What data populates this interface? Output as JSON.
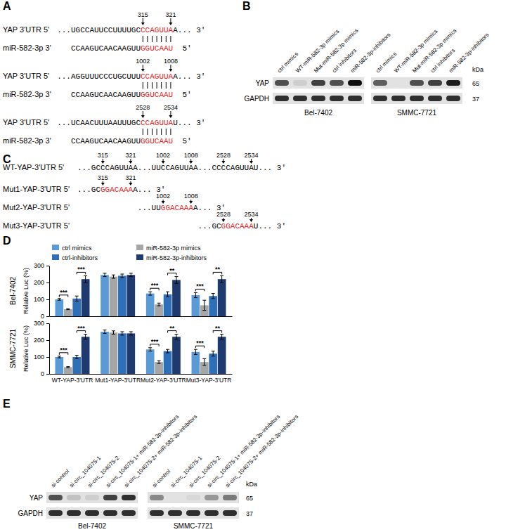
{
  "panels": {
    "A": {
      "label": "A",
      "color": "#e3231f",
      "alignments": [
        {
          "positions": [
            315,
            321
          ],
          "target_label": "YAP 3'UTR 5'",
          "target": [
            "...UGCCAUUCCUUUUGC",
            "CCAGUUA",
            "A... 3'"
          ],
          "mirna_label": "miR-582-3p 3'",
          "mirna": [
            "CCAAGUCAACAAGUU",
            "GGUCAAU",
            "5'"
          ]
        },
        {
          "positions": [
            1002,
            1008
          ],
          "target_label": "YAP 3'UTR 5'",
          "target": [
            "...AGGUUUCCCUGCUUU",
            "CCAGUUA",
            "A... 3'"
          ],
          "mirna_label": "miR-582-3p 3'",
          "mirna": [
            "CCAAGUCAACAAGUU",
            "GGUCAAU",
            "5'"
          ]
        },
        {
          "positions": [
            2528,
            2534
          ],
          "target_label": "YAP 3'UTR 5'",
          "target": [
            "...UCAACUUUAAUUUGC",
            "CCAGUUA",
            "U... 3'"
          ],
          "mirna_label": "miR-582-3p 3'",
          "mirna": [
            "CCAAGUCAACAAGUU",
            "GGUCAAU",
            "5'"
          ]
        }
      ]
    },
    "B": {
      "label": "B",
      "unit": "kDa",
      "lanes": [
        "ctrl mimics",
        "WT-miR-582-3p mimics",
        "Mut-miR-582-3p mimics",
        "ctrl inhibitors",
        "miR-582-3p-inhibitors"
      ],
      "rows": [
        {
          "name": "YAP",
          "kda": 65
        },
        {
          "name": "GAPDH",
          "kda": 37
        }
      ],
      "groups": [
        {
          "name": "Bel-7402",
          "intensity": [
            [
              0.75,
              0.3,
              0.8,
              0.75,
              0.95
            ],
            [
              0.85,
              0.85,
              0.85,
              0.85,
              0.85
            ]
          ]
        },
        {
          "name": "SMMC-7721",
          "intensity": [
            [
              0.7,
              0.2,
              0.75,
              0.8,
              0.9
            ],
            [
              0.85,
              0.85,
              0.85,
              0.85,
              0.85
            ]
          ]
        }
      ]
    },
    "C": {
      "label": "C",
      "color": "#e3231f",
      "wt": {
        "label": "WT-YAP-3'UTR 5'",
        "segments": [
          "...GC",
          "CCAGUUA",
          "A...UU",
          "CCAGUUA",
          "A...CC",
          "CCAGUUA",
          "U... 3'"
        ],
        "positions": [
          [
            315,
            321
          ],
          [
            1002,
            1008
          ],
          [
            2528,
            2534
          ]
        ]
      },
      "mutants": [
        {
          "label": "Mut1-YAP-3'UTR 5'",
          "segments": [
            "...GC",
            "GGACAAA",
            "A... 3'"
          ],
          "positions": [
            315,
            321
          ]
        },
        {
          "label": "Mut2-YAP-3'UTR 5'",
          "segments": [
            "...UU",
            "GGACAAA",
            "A... 3'"
          ],
          "positions": [
            1002,
            1008
          ]
        },
        {
          "label": "Mut3-YAP-3'UTR 5'",
          "segments": [
            "...GC",
            "GGACAAA",
            "U... 3'"
          ],
          "positions": [
            2528,
            2534
          ]
        }
      ]
    },
    "D": {
      "label": "D"
    },
    "E": {
      "label": "E",
      "unit": "kDa",
      "lanes": [
        "si-control",
        "si-circ_104075-1",
        "si-circ_104075-2",
        "si-circ_104075-1+ miR-582-3p-inhibitors",
        "si-circ_104075-2+ miR-582-3p-inhibitors"
      ],
      "rows": [
        {
          "name": "YAP",
          "kda": 65
        },
        {
          "name": "GAPDH",
          "kda": 37
        }
      ],
      "groups": [
        {
          "name": "Bel-7402",
          "intensity": [
            [
              0.75,
              0.35,
              0.3,
              0.8,
              0.85
            ],
            [
              0.85,
              0.85,
              0.85,
              0.85,
              0.85
            ]
          ]
        },
        {
          "name": "SMMC-7721",
          "intensity": [
            [
              0.55,
              0.2,
              0.25,
              0.5,
              0.6
            ],
            [
              0.85,
              0.85,
              0.85,
              0.85,
              0.85
            ]
          ]
        }
      ]
    }
  },
  "chart_data": [
    {
      "type": "bar",
      "title": "Bel-7402",
      "y_label": "Relative Luc (%)",
      "categories": [
        null,
        null,
        null,
        null
      ],
      "series": [
        {
          "name": "ctrl mimics",
          "color": "#5b9bd5",
          "values": [
            100,
            245,
            135,
            125
          ],
          "errors": [
            5,
            10,
            10,
            15
          ]
        },
        {
          "name": "miR-582-3p mimics",
          "color": "#a6a6a6",
          "values": [
            42,
            235,
            70,
            65
          ],
          "errors": [
            3,
            10,
            8,
            30
          ]
        },
        {
          "name": "ctrl-inhibitors",
          "color": "#2e6fb7",
          "values": [
            105,
            240,
            130,
            120
          ],
          "errors": [
            15,
            10,
            15,
            15
          ]
        },
        {
          "name": "miR-582-3p-inhibitors",
          "color": "#1f3a6e",
          "values": [
            220,
            245,
            215,
            220
          ],
          "errors": [
            20,
            10,
            20,
            20
          ]
        }
      ],
      "significance": [
        [
          "***",
          "***"
        ],
        [
          null,
          null
        ],
        [
          "***",
          "**"
        ],
        [
          "***",
          "**"
        ]
      ],
      "ylim": [
        0,
        300
      ],
      "yticks": [
        0,
        100,
        200,
        300
      ],
      "legend": "top"
    },
    {
      "type": "bar",
      "title": "SMMC-7721",
      "y_label": "Relative Luc (%)",
      "categories": [
        "WT-YAP-3'UTR",
        "Mut1-YAP-3'UTR",
        "Mut2-YAP-3'UTR",
        "Mut3-YAP-3'UTR"
      ],
      "series": [
        {
          "name": "ctrl mimics",
          "color": "#5b9bd5",
          "values": [
            100,
            250,
            145,
            130
          ],
          "errors": [
            5,
            10,
            10,
            15
          ]
        },
        {
          "name": "miR-582-3p mimics",
          "color": "#a6a6a6",
          "values": [
            40,
            245,
            70,
            70
          ],
          "errors": [
            3,
            10,
            8,
            20
          ]
        },
        {
          "name": "ctrl-inhibitors",
          "color": "#2e6fb7",
          "values": [
            100,
            240,
            135,
            120
          ],
          "errors": [
            10,
            10,
            10,
            15
          ]
        },
        {
          "name": "miR-582-3p-inhibitors",
          "color": "#1f3a6e",
          "values": [
            220,
            240,
            220,
            220
          ],
          "errors": [
            15,
            10,
            15,
            15
          ]
        }
      ],
      "significance": [
        [
          "***",
          "***"
        ],
        [
          null,
          null
        ],
        [
          "***",
          "**"
        ],
        [
          "***",
          "**"
        ]
      ],
      "ylim": [
        0,
        300
      ],
      "yticks": [
        0,
        100,
        200,
        300
      ]
    }
  ]
}
